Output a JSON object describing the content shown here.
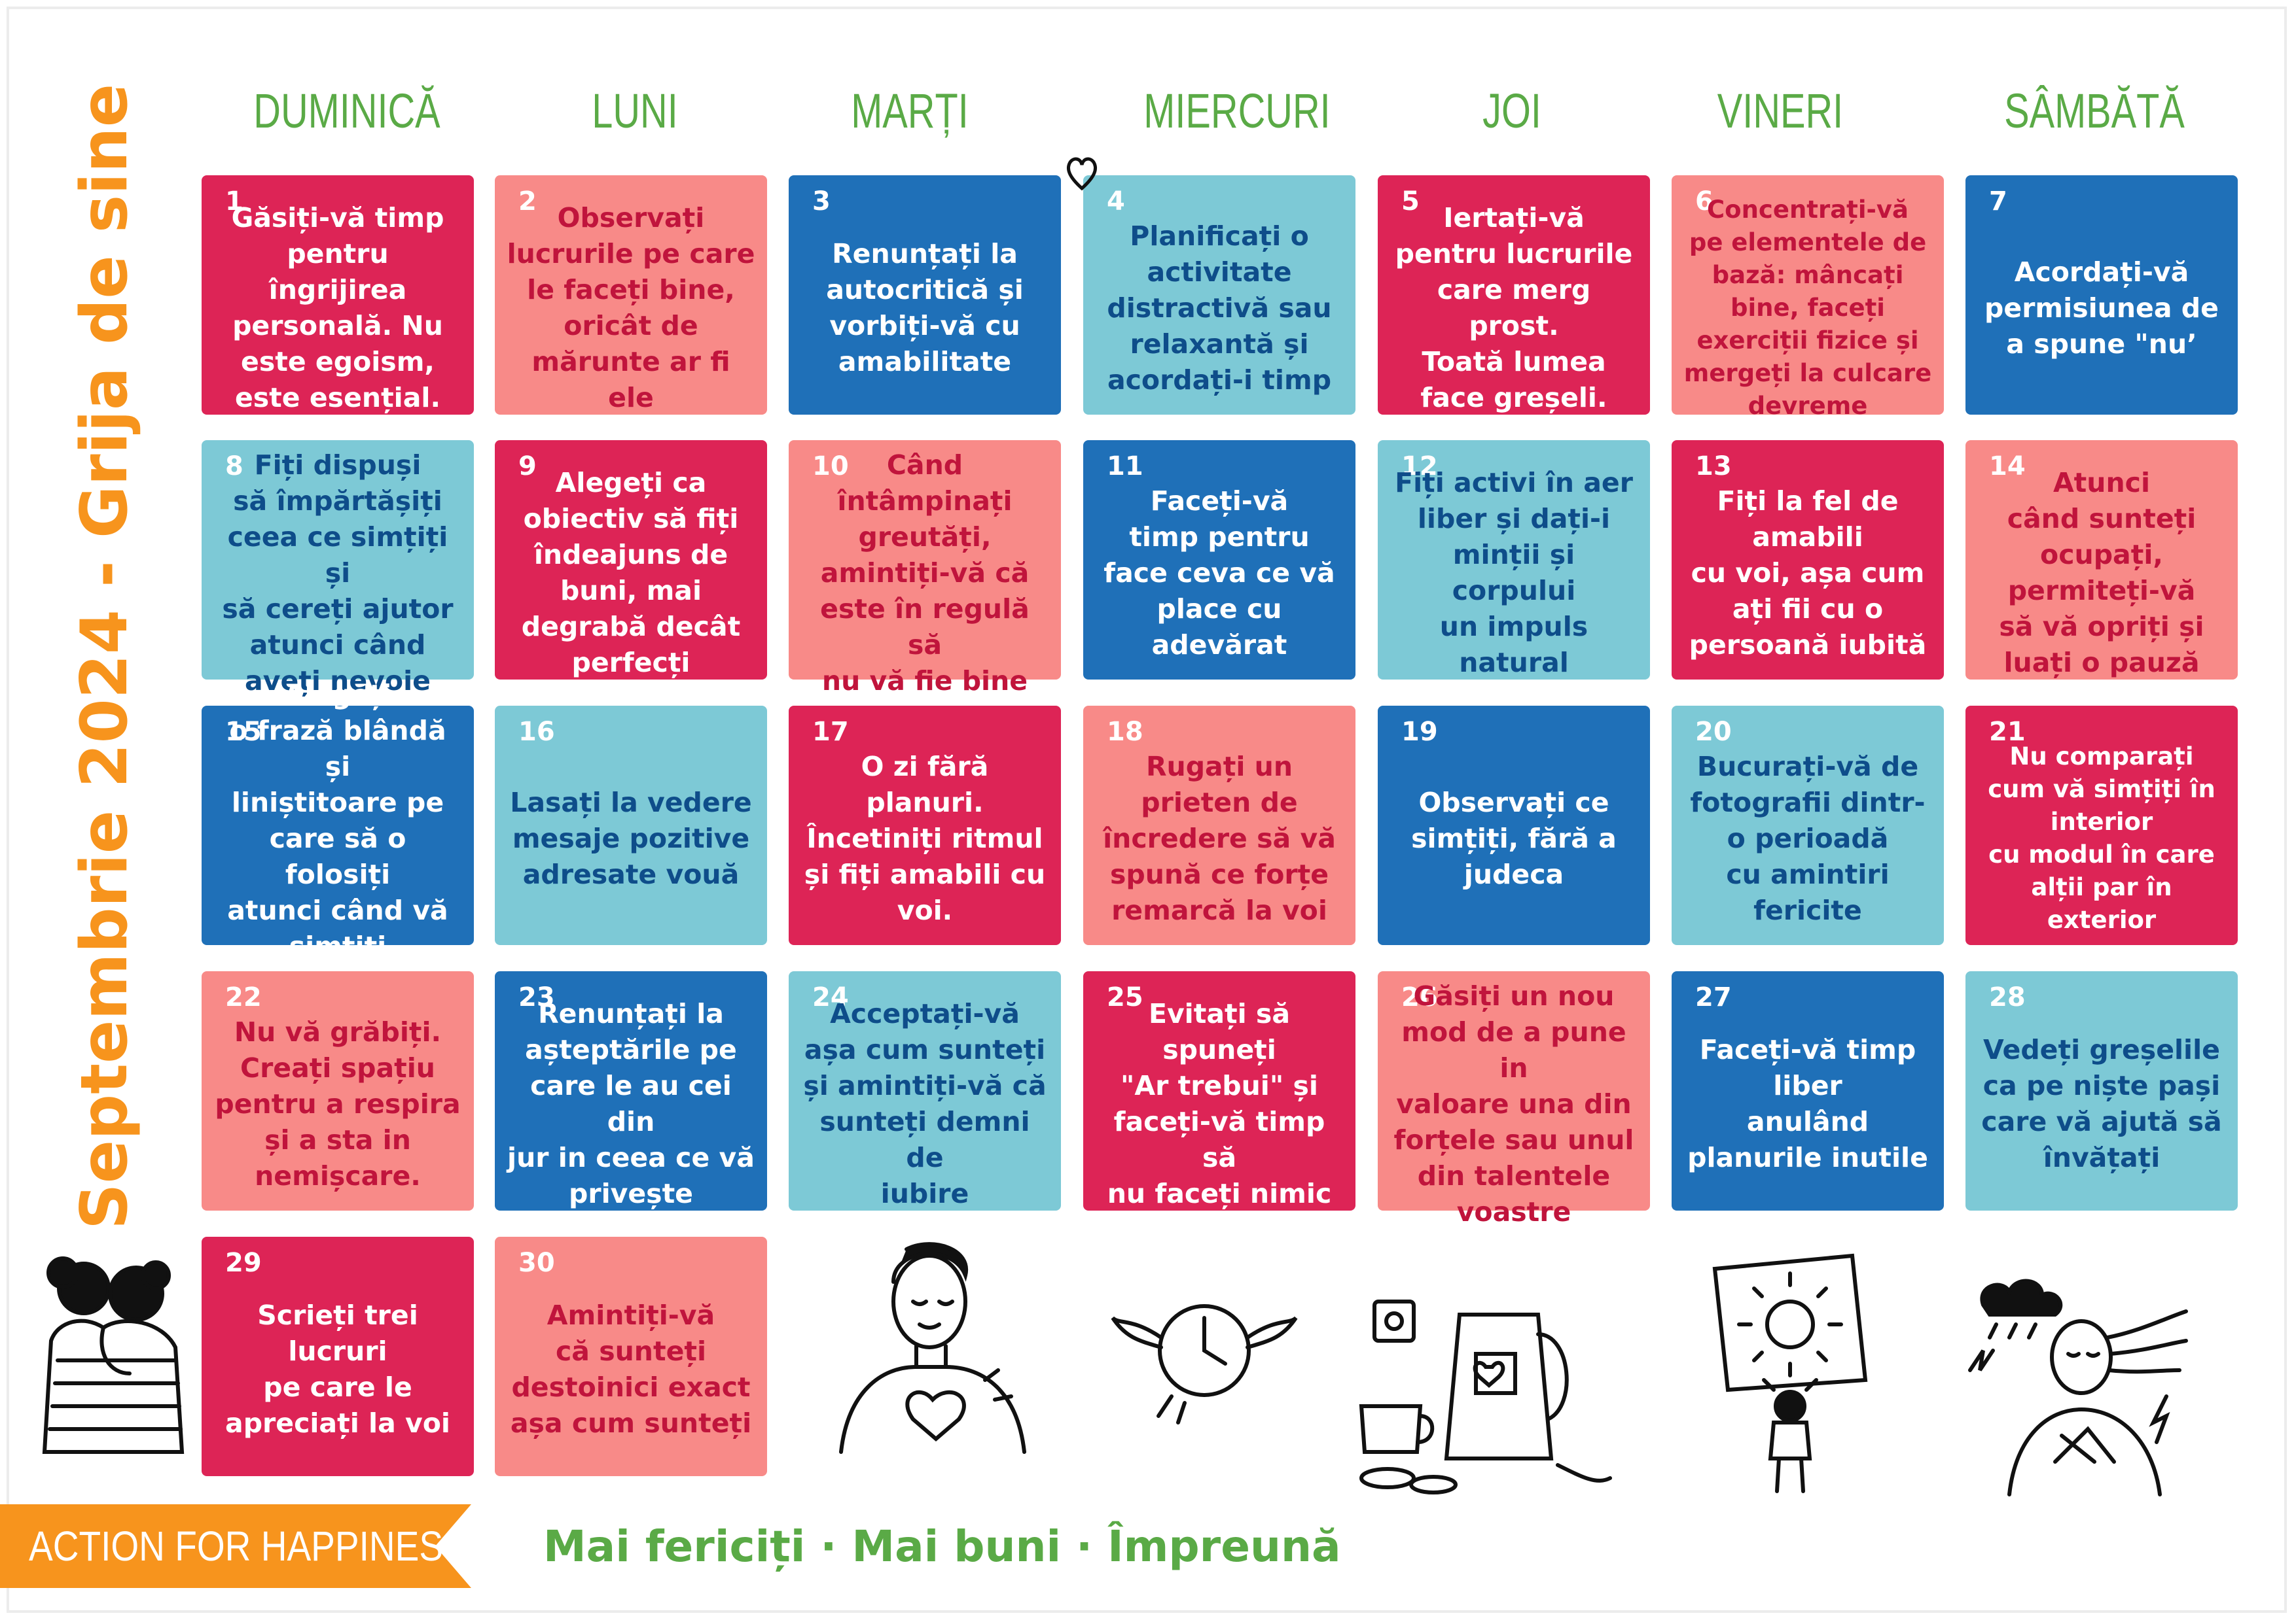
{
  "title": "Septembrie 2024 - Grija de sine",
  "weekdays": [
    "DUMINICĂ",
    "LUNI",
    "MARȚI",
    "MIERCURI",
    "JOI",
    "VINERI",
    "SÂMBĂTĂ"
  ],
  "colors": {
    "red": "#dd2456",
    "pink": "#f88a88",
    "blue": "#1f70b8",
    "cyan": "#7dc9d6",
    "green": "#5aaa46",
    "orange": "#f7941d"
  },
  "days": [
    {
      "num": "1",
      "text": "Găsiți-vă timp\npentru îngrijirea\npersonală. Nu\neste egoism,\neste esențial."
    },
    {
      "num": "2",
      "text": "Observați\nlucrurile pe care\nle faceți bine,\noricât de\nmărunte ar fi ele"
    },
    {
      "num": "3",
      "text": "Renunțați la\nautocritică și\nvorbiți-vă cu\namabilitate"
    },
    {
      "num": "4",
      "text": "Planificați o\nactivitate\ndistractivă sau\nrelaxantă și\nacordați-i timp"
    },
    {
      "num": "5",
      "text": "Iertați-vă\npentru lucrurile\ncare merg prost.\nToată lumea\nface greșeli."
    },
    {
      "num": "6",
      "text": "Concentrați-vă\npe elementele de\nbază: mâncați\nbine, faceți\nexerciții fizice și\nmergeți la culcare\ndevreme"
    },
    {
      "num": "7",
      "text": "Acordați-vă\npermisiunea de\na spune \"nu’"
    },
    {
      "num": "8",
      "text": "Fiți dispuși\nsă împărtășiți\nceea ce simțiți și\nsă cereți ajutor\natunci când\naveți nevoie"
    },
    {
      "num": "9",
      "text": "Alegeți ca\nobiectiv să fiți\nîndeajuns de\nbuni, mai\ndegrabă decât\nperfecți"
    },
    {
      "num": "10",
      "text": "Când\nîntâmpinați\ngreutăți,\namintiți-vă că\neste în regulă să\nnu vă fie bine"
    },
    {
      "num": "11",
      "text": "Faceți-vă\ntimp pentru\nface ceva ce vă\nplace cu\nadevărat"
    },
    {
      "num": "12",
      "text": "Fiți activi în aer\nliber și dați-i\nminții și corpului\nun impuls\nnatural"
    },
    {
      "num": "13",
      "text": "Fiți la fel de\namabili\ncu voi, așa cum\nați fii cu o\npersoană iubită"
    },
    {
      "num": "14",
      "text": "Atunci\ncând sunteți\nocupați,\npermiteți-vă\nsă vă opriți și\nluați o pauză"
    },
    {
      "num": "15",
      "text": "Alegeți\no frază blândă și\nliniștitoare pe\ncare să o folosiți\natunci când vă\nsimțiți deprimați"
    },
    {
      "num": "16",
      "text": "Lasați la vedere\nmesaje pozitive\nadresate vouă"
    },
    {
      "num": "17",
      "text": "O zi fără planuri.\nÎncetiniți ritmul\nși fiți amabili cu\nvoi."
    },
    {
      "num": "18",
      "text": "Rugați un\nprieten de\nîncredere să vă\nspună ce forțe\nremarcă la voi"
    },
    {
      "num": "19",
      "text": "Observați ce\nsimțiți, fără a\njudeca"
    },
    {
      "num": "20",
      "text": "Bucurați-vă de\nfotografii dintr-\no perioadă\ncu amintiri\nfericite"
    },
    {
      "num": "21",
      "text": "Nu comparați\ncum vă simțiți în\ninterior\ncu modul în care\nalții par în exterior"
    },
    {
      "num": "22",
      "text": "Nu vă grăbiți.\nCreați spațiu\npentru a respira\nși a sta in\nnemișcare."
    },
    {
      "num": "23",
      "text": "Renunțați la\nașteptările pe\ncare le au cei din\njur in ceea ce vă\nprivește"
    },
    {
      "num": "24",
      "text": "Acceptați-vă\nașa cum sunteți\nși amintiți-vă că\nsunteți demni de\niubire"
    },
    {
      "num": "25",
      "text": "Evitați să\nspuneți\n\"Ar trebui\" și\nfaceți-vă timp\nsă\nnu faceți nimic"
    },
    {
      "num": "26",
      "text": "Găsiți un nou\nmod de a pune in\nvaloare una din\nforțele sau unul\ndin talentele\nvoastre"
    },
    {
      "num": "27",
      "text": "Faceți-vă timp\nliber\nanulând\nplanurile inutile"
    },
    {
      "num": "28",
      "text": "Vedeți greșelile\nca pe niște pași\ncare vă ajută să\nînvățați"
    },
    {
      "num": "29",
      "text": "Scrieți trei\nlucruri\npe care le\napreciați la voi"
    },
    {
      "num": "30",
      "text": "Amintiți-vă\ncă sunteți\ndestoinici exact\nașa cum sunteți"
    }
  ],
  "footer": {
    "logo": "ACTION FOR HAPPINESS",
    "slogan": "Mai fericiți · Mai buni · Împreună"
  }
}
